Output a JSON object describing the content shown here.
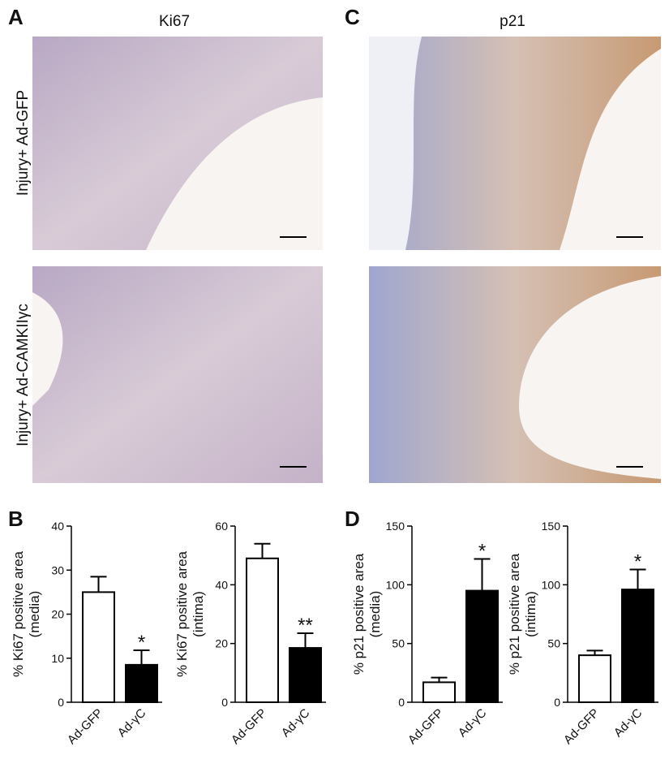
{
  "panels": {
    "a": "A",
    "b": "B",
    "c": "C",
    "d": "D"
  },
  "images": {
    "column_titles": [
      "Ki67",
      "p21"
    ],
    "row_labels": [
      "Injury+ Ad-GFP",
      "Injury+ Ad-CAMKIIγc"
    ]
  },
  "chart_data": [
    {
      "type": "bar",
      "ylabel": [
        "% Ki67 positive area",
        "(media)"
      ],
      "categories": [
        "Ad-GFP",
        "Ad-γC"
      ],
      "values": [
        25,
        8.5
      ],
      "errors": [
        3.5,
        3.3
      ],
      "colors": [
        "#ffffff",
        "#000000"
      ],
      "ylim": [
        0,
        40
      ],
      "yticks": [
        0,
        10,
        20,
        30,
        40
      ],
      "annotations": [
        {
          "category": "Ad-γC",
          "text": "*"
        }
      ]
    },
    {
      "type": "bar",
      "ylabel": [
        "% Ki67 positive area",
        "(intima)"
      ],
      "categories": [
        "Ad-GFP",
        "Ad-γC"
      ],
      "values": [
        49,
        18.5
      ],
      "errors": [
        5,
        5
      ],
      "colors": [
        "#ffffff",
        "#000000"
      ],
      "ylim": [
        0,
        60
      ],
      "yticks": [
        0,
        20,
        40,
        60
      ],
      "annotations": [
        {
          "category": "Ad-γC",
          "text": "**"
        }
      ]
    },
    {
      "type": "bar",
      "ylabel": [
        "% p21 positive area",
        "(media)"
      ],
      "categories": [
        "Ad-GFP",
        "Ad-γC"
      ],
      "values": [
        17,
        95
      ],
      "errors": [
        4,
        27
      ],
      "colors": [
        "#ffffff",
        "#000000"
      ],
      "ylim": [
        0,
        150
      ],
      "yticks": [
        0,
        50,
        100,
        150
      ],
      "annotations": [
        {
          "category": "Ad-γC",
          "text": "*"
        }
      ]
    },
    {
      "type": "bar",
      "ylabel": [
        "% p21 positive area",
        "(intima)"
      ],
      "categories": [
        "Ad-GFP",
        "Ad-γC"
      ],
      "values": [
        40,
        96
      ],
      "errors": [
        4,
        17
      ],
      "colors": [
        "#ffffff",
        "#000000"
      ],
      "ylim": [
        0,
        150
      ],
      "yticks": [
        0,
        50,
        100,
        150
      ],
      "annotations": [
        {
          "category": "Ad-γC",
          "text": "*"
        }
      ]
    }
  ]
}
